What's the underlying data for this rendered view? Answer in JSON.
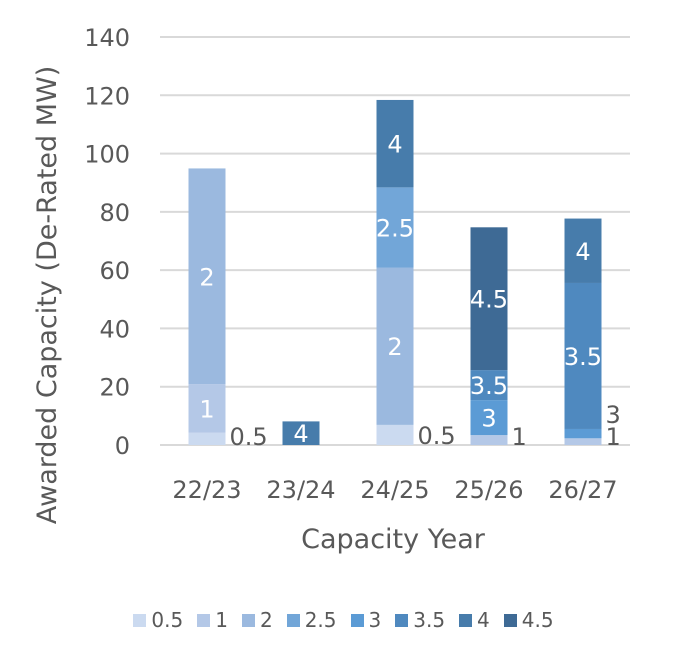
{
  "chart_data": {
    "type": "bar",
    "stacked": true,
    "title": "",
    "xlabel": "Capacity Year",
    "ylabel": "Awarded Capacity (De-Rated MW)",
    "ylim": [
      0,
      140
    ],
    "yticks": [
      0,
      20,
      40,
      60,
      80,
      100,
      120,
      140
    ],
    "grid": true,
    "legend_position": "bottom",
    "categories": [
      "22/23",
      "23/24",
      "24/25",
      "25/26",
      "26/27"
    ],
    "series": [
      {
        "name": "0.5",
        "color": "#cbdaf0",
        "values": [
          4.2,
          0,
          6.9,
          0,
          0
        ]
      },
      {
        "name": "1",
        "color": "#b4c8e7",
        "values": [
          16.7,
          0,
          0,
          3.4,
          2.3
        ]
      },
      {
        "name": "2",
        "color": "#9bb9df",
        "values": [
          74,
          0,
          54,
          0,
          0
        ]
      },
      {
        "name": "2.5",
        "color": "#72a6d8",
        "values": [
          0,
          0,
          27.5,
          0,
          0
        ]
      },
      {
        "name": "3",
        "color": "#5b9bd5",
        "values": [
          0,
          0,
          0,
          12,
          3.2
        ]
      },
      {
        "name": "3.5",
        "color": "#4f89bf",
        "values": [
          0,
          0,
          0,
          10.3,
          50.1
        ]
      },
      {
        "name": "4",
        "color": "#477cab",
        "values": [
          0,
          8.1,
          30,
          0,
          22.1
        ]
      },
      {
        "name": "4.5",
        "color": "#3e6a95",
        "values": [
          0,
          0,
          0,
          49,
          0
        ]
      }
    ]
  }
}
